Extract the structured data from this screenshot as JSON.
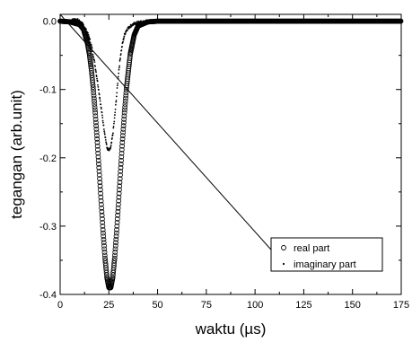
{
  "chart_data": {
    "type": "scatter",
    "title": "",
    "xlabel": "waktu (µs)",
    "ylabel": "tegangan (arb.unit)",
    "xlim": [
      0,
      175
    ],
    "ylim": [
      -0.4,
      0.01
    ],
    "x_ticks": [
      "0",
      "25",
      "50",
      "75",
      "100",
      "125",
      "150",
      "175"
    ],
    "y_ticks": [
      "0.0",
      "-0.1",
      "-0.2",
      "-0.3",
      "-0.4"
    ],
    "grid": false,
    "legend_position": "bottom-right",
    "series": [
      {
        "name": "real part",
        "marker": "open-circle",
        "peak_x": 24,
        "peak_y": -0.39,
        "x_range": [
          0,
          175
        ],
        "x": [
          0,
          5,
          10,
          12,
          14,
          15,
          16,
          17,
          18,
          19,
          20,
          21,
          22,
          23,
          24,
          25,
          26,
          27,
          28,
          29,
          30,
          31,
          32,
          33,
          34,
          36,
          38,
          40,
          45,
          50,
          60,
          75,
          100,
          125,
          150,
          175
        ],
        "y": [
          0,
          -0.001,
          -0.005,
          -0.012,
          -0.032,
          -0.048,
          -0.07,
          -0.099,
          -0.134,
          -0.174,
          -0.218,
          -0.263,
          -0.307,
          -0.346,
          -0.375,
          -0.39,
          -0.39,
          -0.375,
          -0.346,
          -0.307,
          -0.263,
          -0.218,
          -0.174,
          -0.134,
          -0.099,
          -0.048,
          -0.02,
          -0.007,
          -0.001,
          0,
          0,
          0,
          0,
          0,
          0,
          0
        ]
      },
      {
        "name": "imaginary part",
        "marker": "small-dot",
        "peak_x": 24,
        "peak_y": -0.19,
        "x_range": [
          0,
          125
        ],
        "x": [
          0,
          5,
          8,
          10,
          12,
          14,
          15,
          16,
          17,
          18,
          19,
          20,
          21,
          22,
          23,
          24,
          25,
          26,
          27,
          28,
          29,
          30,
          31,
          32,
          33,
          34,
          36,
          38,
          40,
          45,
          50,
          60,
          75,
          100,
          125
        ],
        "y": [
          0,
          0,
          0.003,
          0,
          -0.006,
          -0.017,
          -0.025,
          -0.036,
          -0.05,
          -0.066,
          -0.085,
          -0.105,
          -0.126,
          -0.147,
          -0.166,
          -0.185,
          -0.19,
          -0.185,
          -0.166,
          -0.14,
          -0.108,
          -0.075,
          -0.05,
          -0.033,
          -0.02,
          -0.013,
          -0.007,
          -0.004,
          -0.002,
          0,
          0,
          0,
          0,
          0,
          0
        ]
      }
    ]
  }
}
